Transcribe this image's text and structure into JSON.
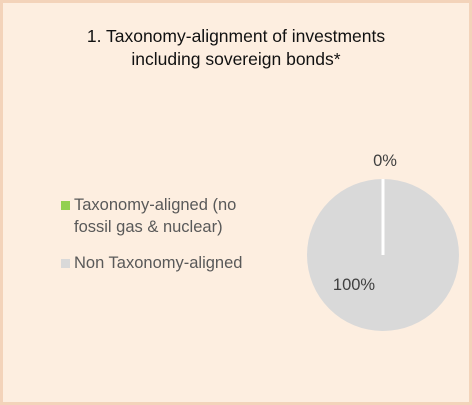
{
  "chart_data": {
    "type": "pie",
    "title_lines": [
      "1. Taxonomy-alignment of investments",
      "including sovereign bonds*"
    ],
    "slices": [
      {
        "label_lines": [
          "Taxonomy-aligned (no",
          "fossil gas & nuclear)"
        ],
        "value": 0,
        "data_label": "0%",
        "color": "#92d050"
      },
      {
        "label_lines": [
          "Non Taxonomy-aligned"
        ],
        "value": 100,
        "data_label": "100%",
        "color": "#d9d9d9"
      }
    ],
    "legend_position": "left"
  },
  "colors": {
    "background": "#fdeee0",
    "border": "#f3d3ba"
  }
}
